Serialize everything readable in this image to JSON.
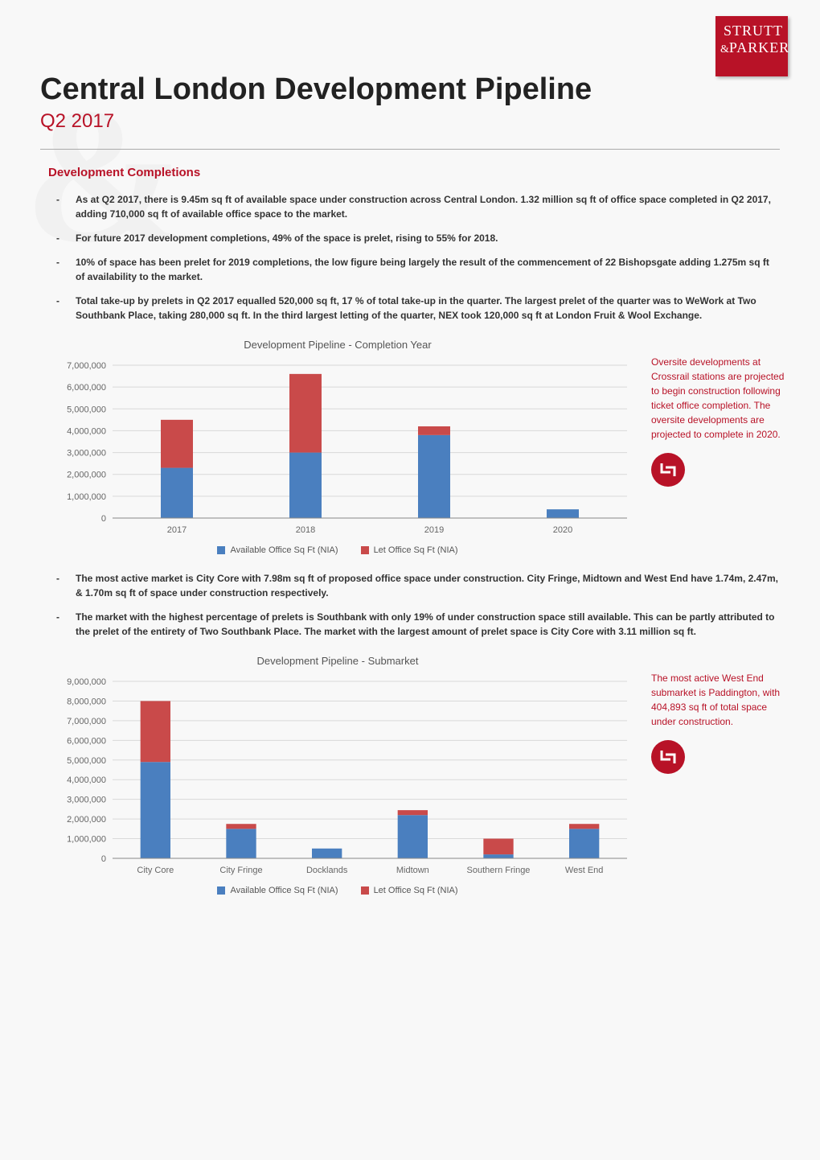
{
  "logo": {
    "line1": "STRUTT",
    "amp": "&",
    "line2": "PARKER"
  },
  "title": "Central London Development Pipeline",
  "subtitle": "Q2 2017",
  "section_heading": "Development Completions",
  "bullets_top": [
    "As at Q2 2017, there is 9.45m sq ft of available space under construction across Central London. 1.32 million sq ft of office space completed in Q2 2017, adding 710,000 sq ft of available office space to the market.",
    "For future 2017 development completions, 49% of the space is prelet, rising to 55% for 2018.",
    "10% of space has been prelet for 2019 completions, the low figure being largely the result of the commencement of 22 Bishopsgate adding 1.275m sq ft of availability to the market.",
    "Total take-up by prelets in Q2 2017 equalled 520,000 sq ft, 17 % of total take-up in the quarter. The largest prelet of the quarter was to WeWork at Two Southbank Place, taking 280,000 sq ft. In the third largest letting of the quarter, NEX took 120,000 sq ft at London Fruit & Wool Exchange."
  ],
  "chart1": {
    "title": "Development Pipeline - Completion Year",
    "type": "stacked-bar",
    "categories": [
      "2017",
      "2018",
      "2019",
      "2020"
    ],
    "series": [
      {
        "name": "Available Office Sq Ft (NIA)",
        "color": "#4a7fbf",
        "values": [
          2300000,
          3000000,
          3800000,
          400000
        ]
      },
      {
        "name": "Let Office Sq Ft (NIA)",
        "color": "#c94a4a",
        "values": [
          2200000,
          3600000,
          400000,
          0
        ]
      }
    ],
    "ylim": [
      0,
      7000000
    ],
    "ytick_step": 1000000,
    "bar_width": 0.25,
    "grid_color": "#d9d9d9",
    "background": "#ffffff",
    "axis_fontsize": 11,
    "title_fontsize": 13
  },
  "sidenote1": "Oversite developments at Crossrail stations are projected to begin construction following ticket office completion. The oversite developments are projected to complete in 2020.",
  "bullets_mid": [
    "The most active market is City Core with 7.98m sq ft of proposed office space under construction. City Fringe, Midtown and West End have 1.74m, 2.47m, & 1.70m sq ft of space under construction respectively.",
    "The market with the highest percentage of prelets is Southbank with only 19% of under construction space still available. This can be partly attributed to the prelet of the entirety of Two Southbank Place. The market with the largest amount of prelet space is City Core with 3.11 million sq ft."
  ],
  "chart2": {
    "title": "Development Pipeline - Submarket",
    "type": "stacked-bar",
    "categories": [
      "City Core",
      "City Fringe",
      "Docklands",
      "Midtown",
      "Southern Fringe",
      "West End"
    ],
    "series": [
      {
        "name": "Available Office Sq Ft (NIA)",
        "color": "#4a7fbf",
        "values": [
          4900000,
          1500000,
          500000,
          2200000,
          200000,
          1500000
        ]
      },
      {
        "name": "Let Office Sq Ft (NIA)",
        "color": "#c94a4a",
        "values": [
          3100000,
          250000,
          0,
          250000,
          800000,
          250000
        ]
      }
    ],
    "ylim": [
      0,
      9000000
    ],
    "ytick_step": 1000000,
    "bar_width": 0.35,
    "grid_color": "#d9d9d9",
    "background": "#ffffff",
    "axis_fontsize": 11,
    "title_fontsize": 13
  },
  "sidenote2": "The most active West End submarket is Paddington, with 404,893 sq ft of total space under construction.",
  "legend_labels": [
    "Available Office Sq Ft (NIA)",
    "Let Office Sq Ft (NIA)"
  ],
  "legend_colors": [
    "#4a7fbf",
    "#c94a4a"
  ]
}
